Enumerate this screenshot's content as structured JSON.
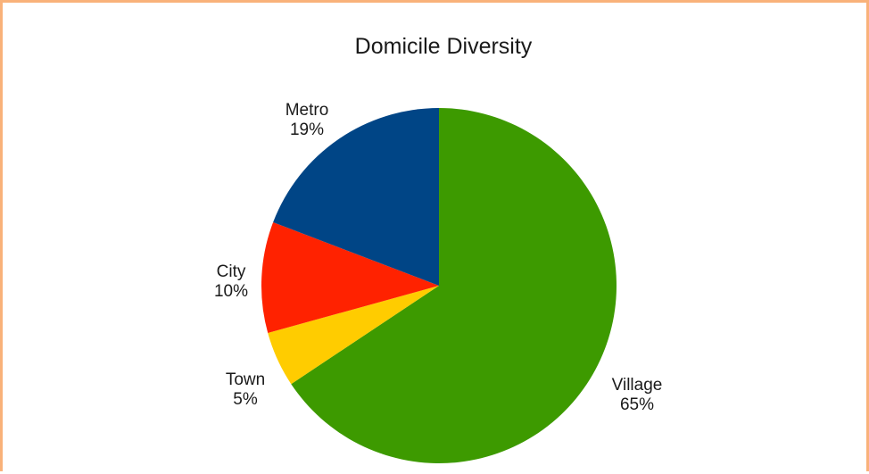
{
  "chart_data": {
    "type": "pie",
    "title": "Domicile Diversity",
    "slices": [
      {
        "label": "Village",
        "value": 65,
        "display": "65%",
        "color": "#3d9a00"
      },
      {
        "label": "Town",
        "value": 5,
        "display": "5%",
        "color": "#ffcc00"
      },
      {
        "label": "City",
        "value": 10,
        "display": "10%",
        "color": "#ff2200"
      },
      {
        "label": "Metro",
        "value": 19,
        "display": "19%",
        "color": "#004586"
      }
    ],
    "legend": "none",
    "start_angle": "12 o'clock",
    "direction": "clockwise"
  }
}
